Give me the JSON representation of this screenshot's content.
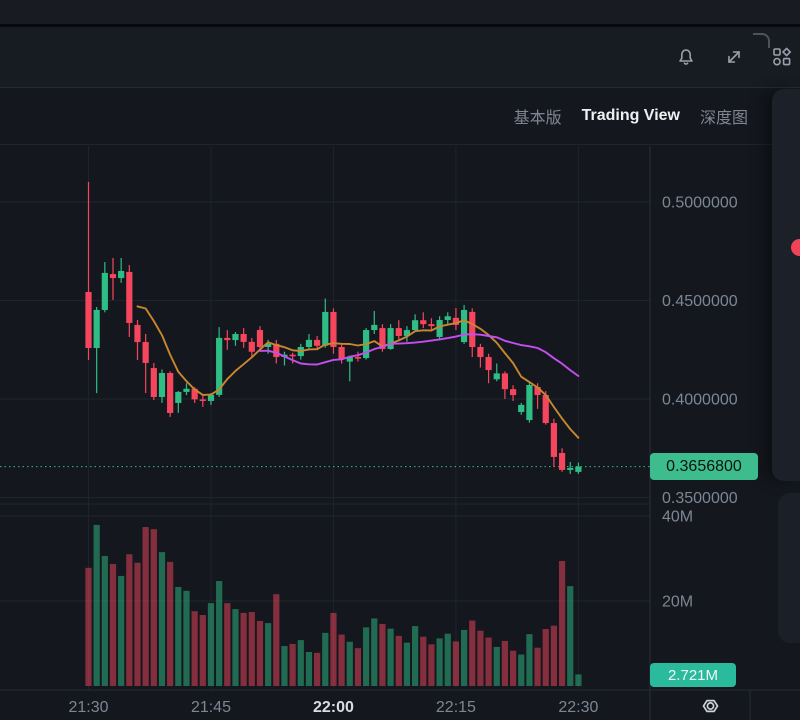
{
  "header": {
    "icons": [
      {
        "name": "alerts-bell"
      },
      {
        "name": "fullscreen-expand"
      },
      {
        "name": "indicator-apps"
      }
    ]
  },
  "tabs": {
    "items": [
      {
        "label": "基本版",
        "active": false
      },
      {
        "label": "Trading View",
        "active": true
      },
      {
        "label": "深度图",
        "active": false
      }
    ]
  },
  "price_axis": {
    "labels": [
      "0.5000000",
      "0.4500000",
      "0.4000000",
      "0.3500000"
    ],
    "values": [
      0.5,
      0.45,
      0.4,
      0.35
    ]
  },
  "volume_axis": {
    "labels": [
      "40M",
      "20M"
    ],
    "values": [
      40,
      20
    ]
  },
  "last_price": {
    "label": "0.3656800",
    "value": 0.36568
  },
  "last_volume": {
    "label": "2.721M",
    "value": 2.721
  },
  "time_axis": {
    "labels": [
      {
        "text": "21:30",
        "emphasis": false
      },
      {
        "text": "21:45",
        "emphasis": false
      },
      {
        "text": "22:00",
        "emphasis": true
      },
      {
        "text": "22:15",
        "emphasis": false
      },
      {
        "text": "22:30",
        "emphasis": false
      }
    ]
  },
  "colors": {
    "up": "#2ebd85",
    "down": "#f6465d",
    "volume_up": "rgba(46,189,133,0.50)",
    "volume_down": "rgba(246,70,93,0.50)",
    "ma_fast": "#c8872e",
    "ma_slow": "#c44ef0",
    "grid": "#1f242c",
    "axis_text": "#7d8694",
    "axis_text_strong": "#d9dde3",
    "badge_price_bg": "#3dbc8d",
    "badge_volume_bg": "#2abb9c",
    "last_price_line": "#2ebd85",
    "icon": "#9aa1ac"
  },
  "chart_data": {
    "type": "candlestick_with_volume",
    "interval": "1m",
    "x_range": [
      "21:30",
      "22:30"
    ],
    "price_ylim": [
      0.335,
      0.528
    ],
    "volume_ylim": [
      0,
      43
    ],
    "grid": true,
    "legend_position": "none",
    "moving_averages": [
      {
        "name": "MA-fast",
        "period": 7,
        "color": "#c8872e"
      },
      {
        "name": "MA-slow",
        "period": 22,
        "color": "#c44ef0"
      }
    ],
    "columns": [
      "open",
      "high",
      "low",
      "close",
      "volume_millions"
    ],
    "candles": [
      [
        0.4543,
        0.5102,
        0.4198,
        0.4259,
        27.8
      ],
      [
        0.4259,
        0.4467,
        0.403,
        0.4452,
        37.9
      ],
      [
        0.4452,
        0.4695,
        0.444,
        0.464,
        30.6
      ],
      [
        0.4634,
        0.4716,
        0.4503,
        0.4614,
        28.7
      ],
      [
        0.4614,
        0.4716,
        0.459,
        0.465,
        25.9
      ],
      [
        0.4645,
        0.468,
        0.4315,
        0.4386,
        31.0
      ],
      [
        0.4376,
        0.4401,
        0.4198,
        0.4289,
        29.0
      ],
      [
        0.4289,
        0.433,
        0.403,
        0.4183,
        37.4
      ],
      [
        0.4157,
        0.4183,
        0.3995,
        0.401,
        36.9
      ],
      [
        0.401,
        0.415,
        0.398,
        0.4132,
        31.5
      ],
      [
        0.4132,
        0.414,
        0.3909,
        0.3929,
        29.2
      ],
      [
        0.398,
        0.404,
        0.393,
        0.4036,
        23.3
      ],
      [
        0.4036,
        0.408,
        0.402,
        0.4052,
        22.4
      ],
      [
        0.4052,
        0.406,
        0.398,
        0.3998,
        17.6
      ],
      [
        0.3998,
        0.402,
        0.396,
        0.399,
        16.7
      ],
      [
        0.399,
        0.403,
        0.397,
        0.4021,
        19.5
      ],
      [
        0.4021,
        0.4365,
        0.401,
        0.431,
        24.7
      ],
      [
        0.431,
        0.435,
        0.425,
        0.4299,
        19.5
      ],
      [
        0.4299,
        0.434,
        0.427,
        0.433,
        18.1
      ],
      [
        0.433,
        0.436,
        0.426,
        0.429,
        17.2
      ],
      [
        0.429,
        0.431,
        0.421,
        0.424,
        17.4
      ],
      [
        0.435,
        0.437,
        0.424,
        0.4264,
        15.3
      ],
      [
        0.4264,
        0.43,
        0.423,
        0.428,
        14.8
      ],
      [
        0.428,
        0.43,
        0.418,
        0.4213,
        21.6
      ],
      [
        0.4213,
        0.424,
        0.417,
        0.4225,
        9.4
      ],
      [
        0.4225,
        0.4235,
        0.418,
        0.4218,
        9.9
      ],
      [
        0.4218,
        0.428,
        0.42,
        0.4264,
        10.8
      ],
      [
        0.4264,
        0.433,
        0.425,
        0.43,
        8.0
      ],
      [
        0.43,
        0.432,
        0.425,
        0.427,
        7.8
      ],
      [
        0.427,
        0.451,
        0.426,
        0.4442,
        12.5
      ],
      [
        0.4442,
        0.446,
        0.423,
        0.4264,
        17.2
      ],
      [
        0.4264,
        0.428,
        0.418,
        0.4203,
        12.1
      ],
      [
        0.419,
        0.422,
        0.409,
        0.4213,
        10.4
      ],
      [
        0.4213,
        0.424,
        0.419,
        0.4208,
        8.9
      ],
      [
        0.4208,
        0.436,
        0.42,
        0.435,
        13.8
      ],
      [
        0.435,
        0.4447,
        0.433,
        0.4376,
        15.9
      ],
      [
        0.436,
        0.438,
        0.424,
        0.4254,
        14.6
      ],
      [
        0.4254,
        0.438,
        0.425,
        0.436,
        13.5
      ],
      [
        0.436,
        0.44,
        0.43,
        0.432,
        11.8
      ],
      [
        0.432,
        0.437,
        0.429,
        0.435,
        10.2
      ],
      [
        0.435,
        0.443,
        0.434,
        0.44,
        14.1
      ],
      [
        0.44,
        0.444,
        0.436,
        0.438,
        11.6
      ],
      [
        0.438,
        0.441,
        0.435,
        0.437,
        9.8
      ],
      [
        0.4315,
        0.442,
        0.43,
        0.4401,
        11.2
      ],
      [
        0.4401,
        0.444,
        0.438,
        0.442,
        12.3
      ],
      [
        0.4412,
        0.4462,
        0.435,
        0.4376,
        10.5
      ],
      [
        0.4289,
        0.4477,
        0.428,
        0.4452,
        13.2
      ],
      [
        0.4442,
        0.446,
        0.4213,
        0.4264,
        15.4
      ],
      [
        0.4264,
        0.428,
        0.416,
        0.4213,
        13.0
      ],
      [
        0.4213,
        0.423,
        0.408,
        0.4147,
        11.4
      ],
      [
        0.41,
        0.418,
        0.409,
        0.413,
        9.2
      ],
      [
        0.413,
        0.414,
        0.4,
        0.405,
        10.6
      ],
      [
        0.405,
        0.407,
        0.399,
        0.402,
        8.3
      ],
      [
        0.3934,
        0.398,
        0.392,
        0.397,
        7.4
      ],
      [
        0.3893,
        0.408,
        0.388,
        0.4071,
        12.2
      ],
      [
        0.4061,
        0.408,
        0.395,
        0.402,
        9.0
      ],
      [
        0.402,
        0.404,
        0.387,
        0.3878,
        13.4
      ],
      [
        0.3878,
        0.39,
        0.3655,
        0.3706,
        14.2
      ],
      [
        0.3726,
        0.375,
        0.363,
        0.364,
        29.4
      ],
      [
        0.364,
        0.368,
        0.362,
        0.365,
        23.5
      ],
      [
        0.363,
        0.3677,
        0.362,
        0.3657,
        2.721
      ]
    ]
  }
}
